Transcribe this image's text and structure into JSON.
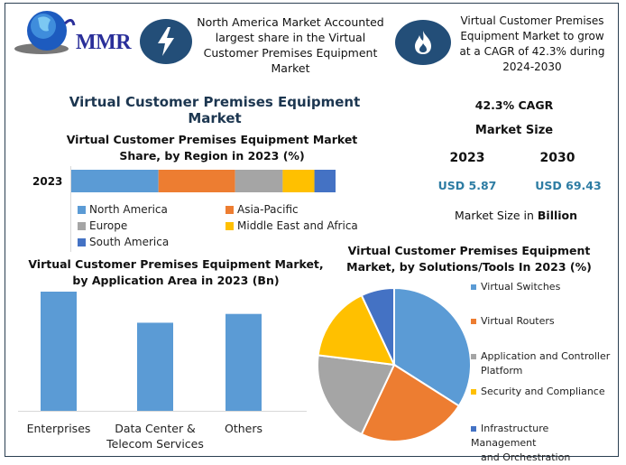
{
  "header": {
    "logo_text": "MMR",
    "box1_text": "North America Market Accounted largest share in the Virtual Customer Premises Equipment Market",
    "box2_text": "Virtual Customer Premises Equipment Market to grow at a CAGR of 42.3% during 2024-2030",
    "icon1": "lightning-icon",
    "icon2": "flame-icon"
  },
  "main_title": "Virtual Customer Premises Equipment Market",
  "stats": {
    "cagr": "42.3% CAGR",
    "market_size_label": "Market Size",
    "year1": "2023",
    "year2": "2030",
    "value1": "USD 5.87",
    "value2": "USD 69.43",
    "unit_prefix": "Market Size in ",
    "unit_bold": "Billion"
  },
  "colors": {
    "blue": "#5b9bd5",
    "orange": "#ed7d31",
    "gray": "#a5a5a5",
    "yellow": "#ffc000",
    "darkblue": "#4472c4",
    "accent": "#234e78",
    "usd": "#2d7ca3"
  },
  "chart_data": [
    {
      "type": "bar",
      "stacked": true,
      "orientation": "horizontal",
      "title": "Virtual Customer Premises Equipment Market Share, by Region in 2023 (%)",
      "categories": [
        "2023"
      ],
      "series": [
        {
          "name": "North America",
          "values": [
            33
          ]
        },
        {
          "name": "Asia-Pacific",
          "values": [
            29
          ]
        },
        {
          "name": "Europe",
          "values": [
            18
          ]
        },
        {
          "name": "Middle East and Africa",
          "values": [
            12
          ]
        },
        {
          "name": "South America",
          "values": [
            8
          ]
        }
      ],
      "legend": "bottom"
    },
    {
      "type": "bar",
      "title": "Virtual Customer Premises Equipment Market, by Application Area in 2023 (Bn)",
      "categories": [
        "Enterprises",
        "Data Center & Telecom Services",
        "Others"
      ],
      "category_lines": [
        [
          "Enterprises"
        ],
        [
          "Data Center &",
          "Telecom Services"
        ],
        [
          "Others"
        ]
      ],
      "values": [
        2.3,
        1.7,
        1.87
      ],
      "ylim": [
        0,
        2.3
      ]
    },
    {
      "type": "pie",
      "title": "Virtual Customer Premises Equipment Market, by Solutions/Tools In 2023 (%)",
      "categories": [
        "Virtual Switches",
        "Virtual Routers",
        "Application and Controller Platform",
        "Security and Compliance",
        "Infrastructure Management and Orchestration"
      ],
      "legend_lines": [
        [
          "Virtual Switches"
        ],
        [
          "Virtual Routers"
        ],
        [
          "Application and Controller",
          "Platform"
        ],
        [
          "Security and Compliance"
        ],
        [
          "Infrastructure Management",
          "and Orchestration"
        ]
      ],
      "values": [
        34,
        23,
        20,
        16,
        7
      ],
      "legend": "right"
    }
  ]
}
